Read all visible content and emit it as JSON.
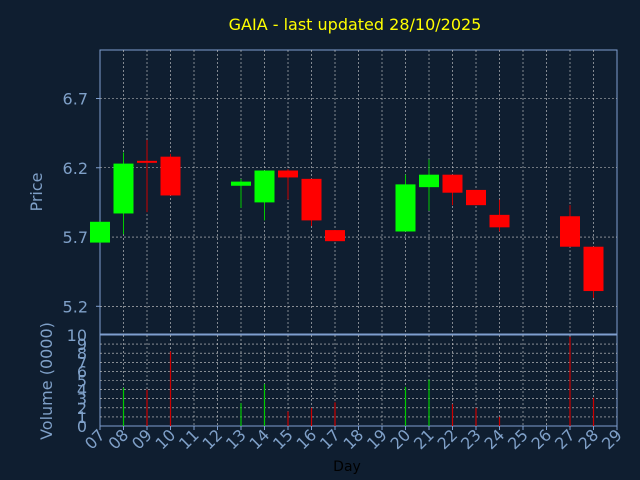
{
  "chart_data": [
    {
      "type": "candlestick",
      "title": "GAIA - last updated 28/10/2025",
      "ylabel": "Price",
      "ylim": [
        5.0,
        7.05
      ],
      "yticks": [
        "5.2",
        "5.7",
        "6.2",
        "6.7"
      ],
      "grid": true,
      "days": [
        "07",
        "08",
        "09",
        "10",
        "11",
        "12",
        "13",
        "14",
        "15",
        "16",
        "17",
        "18",
        "19",
        "20",
        "21",
        "22",
        "23",
        "24",
        "25",
        "26",
        "27",
        "28",
        "29"
      ],
      "candles": [
        {
          "day": "07",
          "open": 5.66,
          "close": 5.81,
          "high": 5.81,
          "low": 5.66
        },
        {
          "day": "08",
          "open": 5.87,
          "close": 6.23,
          "high": 6.31,
          "low": 5.72
        },
        {
          "day": "09",
          "open": 6.25,
          "close": 6.24,
          "high": 6.4,
          "low": 5.88
        },
        {
          "day": "10",
          "open": 6.28,
          "close": 6.0,
          "high": 6.3,
          "low": 6.0
        },
        {
          "day": "13",
          "open": 6.07,
          "close": 6.1,
          "high": 6.12,
          "low": 5.91
        },
        {
          "day": "14",
          "open": 5.95,
          "close": 6.18,
          "high": 6.18,
          "low": 5.82
        },
        {
          "day": "15",
          "open": 6.18,
          "close": 6.13,
          "high": 6.19,
          "low": 5.97
        },
        {
          "day": "16",
          "open": 6.12,
          "close": 5.82,
          "high": 6.12,
          "low": 5.78
        },
        {
          "day": "17",
          "open": 5.75,
          "close": 5.67,
          "high": 5.75,
          "low": 5.67
        },
        {
          "day": "20",
          "open": 5.74,
          "close": 6.08,
          "high": 6.15,
          "low": 5.74
        },
        {
          "day": "21",
          "open": 6.06,
          "close": 6.15,
          "high": 6.26,
          "low": 5.89
        },
        {
          "day": "22",
          "open": 6.15,
          "close": 6.02,
          "high": 6.15,
          "low": 5.93
        },
        {
          "day": "23",
          "open": 6.04,
          "close": 5.93,
          "high": 6.04,
          "low": 5.93
        },
        {
          "day": "24",
          "open": 5.86,
          "close": 5.77,
          "high": 5.97,
          "low": 5.74
        },
        {
          "day": "27",
          "open": 5.85,
          "close": 5.63,
          "high": 5.93,
          "low": 5.63
        },
        {
          "day": "28",
          "open": 5.63,
          "close": 5.31,
          "high": 5.63,
          "low": 5.26
        }
      ]
    },
    {
      "type": "bar",
      "ylabel": "Volume (0000)",
      "xlabel": "Day",
      "ylim": [
        0,
        10
      ],
      "yticks": [
        "0",
        "1",
        "2",
        "3",
        "4",
        "5",
        "6",
        "7",
        "8",
        "9",
        "10"
      ],
      "grid": true,
      "bars": [
        {
          "day": "08",
          "value": 4.2,
          "dir": "up"
        },
        {
          "day": "09",
          "value": 4.0,
          "dir": "down"
        },
        {
          "day": "10",
          "value": 8.2,
          "dir": "down"
        },
        {
          "day": "13",
          "value": 2.5,
          "dir": "up"
        },
        {
          "day": "14",
          "value": 4.6,
          "dir": "up"
        },
        {
          "day": "15",
          "value": 1.6,
          "dir": "down"
        },
        {
          "day": "16",
          "value": 2.0,
          "dir": "down"
        },
        {
          "day": "17",
          "value": 2.6,
          "dir": "down"
        },
        {
          "day": "20",
          "value": 4.3,
          "dir": "up"
        },
        {
          "day": "21",
          "value": 5.1,
          "dir": "up"
        },
        {
          "day": "22",
          "value": 2.4,
          "dir": "down"
        },
        {
          "day": "23",
          "value": 2.0,
          "dir": "down"
        },
        {
          "day": "24",
          "value": 1.0,
          "dir": "down"
        },
        {
          "day": "27",
          "value": 9.8,
          "dir": "down"
        },
        {
          "day": "28",
          "value": 3.1,
          "dir": "down"
        }
      ]
    }
  ],
  "colors": {
    "background": "#0f1e30",
    "title": "#ffff00",
    "axis_text": "#7fa0c8",
    "frame": "#7f9fcf",
    "grid": "#d0d0d0",
    "up": "#00ff00",
    "down": "#ff0000",
    "wick_up": "#00cc00",
    "wick_down": "#cc0000"
  }
}
